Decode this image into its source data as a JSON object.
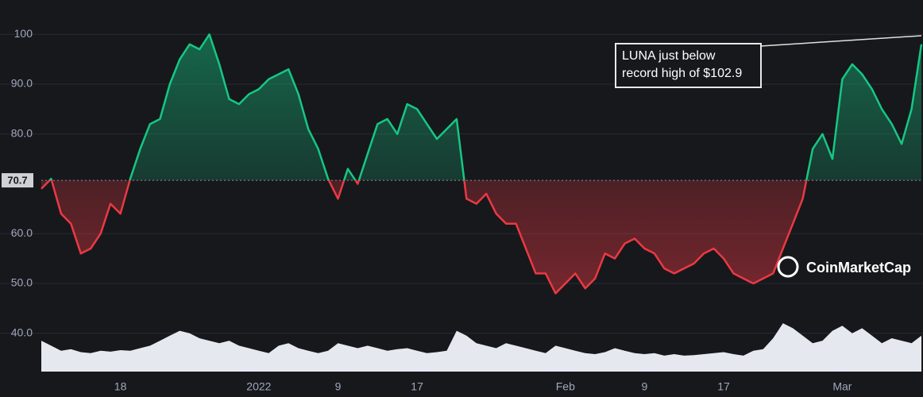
{
  "chart_data": {
    "type": "line",
    "categories": [
      null,
      null,
      null,
      null,
      null,
      null,
      null,
      null,
      "18",
      null,
      null,
      null,
      null,
      null,
      null,
      null,
      null,
      null,
      null,
      null,
      null,
      null,
      "2022",
      null,
      null,
      null,
      null,
      null,
      null,
      null,
      "9",
      null,
      null,
      null,
      null,
      null,
      null,
      null,
      "17",
      null,
      null,
      null,
      null,
      null,
      null,
      null,
      null,
      null,
      null,
      null,
      null,
      null,
      null,
      "Feb",
      null,
      null,
      null,
      null,
      null,
      null,
      null,
      "9",
      null,
      null,
      null,
      null,
      null,
      null,
      null,
      "17",
      null,
      null,
      null,
      null,
      null,
      null,
      null,
      null,
      null,
      null,
      null,
      "Mar",
      null,
      null,
      null,
      null,
      null,
      null,
      null,
      null
    ],
    "series": [
      {
        "color": "#16c784",
        "color_below": "#ea3943",
        "values": [
          69,
          71,
          64,
          62,
          56,
          57,
          60,
          66,
          64,
          71,
          77,
          82,
          83,
          90,
          95,
          98,
          97,
          100,
          94,
          87,
          86,
          88,
          89,
          91,
          92,
          93,
          88,
          81,
          77,
          71,
          67,
          73,
          70,
          76,
          82,
          83,
          80,
          86,
          85,
          82,
          79,
          81,
          83,
          67,
          66,
          68,
          64,
          62,
          62,
          57,
          52,
          52,
          48,
          50,
          52,
          49,
          51,
          56,
          55,
          58,
          59,
          57,
          56,
          53,
          52,
          53,
          54,
          56,
          57,
          55,
          52,
          51,
          50,
          51,
          52,
          57,
          62,
          67,
          77,
          80,
          75,
          91,
          94,
          92,
          89,
          85,
          82,
          78,
          85,
          98
        ]
      },
      {
        "color": "#e6e8f0",
        "values": [
          38.5,
          37.5,
          36.5,
          36.8,
          36.2,
          36.0,
          36.5,
          36.3,
          36.6,
          36.5,
          37.0,
          37.5,
          38.5,
          39.5,
          40.5,
          40.0,
          39.0,
          38.5,
          38.0,
          38.5,
          37.5,
          37.0,
          36.5,
          36.0,
          37.5,
          38.0,
          37.0,
          36.5,
          36.0,
          36.5,
          38.0,
          37.5,
          37.0,
          37.5,
          37.0,
          36.5,
          36.8,
          37.0,
          36.5,
          36.0,
          36.2,
          36.5,
          40.5,
          39.5,
          38.0,
          37.5,
          37.0,
          38.0,
          37.5,
          37.0,
          36.5,
          36.0,
          37.5,
          37.0,
          36.5,
          36.0,
          35.8,
          36.2,
          37.0,
          36.5,
          36.0,
          35.8,
          36.0,
          35.5,
          35.8,
          35.5,
          35.6,
          35.8,
          36.0,
          36.2,
          35.8,
          35.5,
          36.5,
          36.8,
          39.0,
          42.0,
          41.0,
          39.5,
          38.0,
          38.5,
          40.5,
          41.5,
          40.0,
          41.0,
          39.5,
          38.0,
          39.0,
          38.5,
          38.0,
          39.5
        ]
      }
    ],
    "baseline": 70.7,
    "ylim": [
      32.3,
      106.9
    ],
    "yticks": [
      {
        "value": 40,
        "label": "40.0"
      },
      {
        "value": 50,
        "label": "50.0"
      },
      {
        "value": 60,
        "label": "60.0"
      },
      {
        "value": 80,
        "label": "80.0"
      },
      {
        "value": 90,
        "label": "90.0"
      },
      100
    ],
    "grid": true,
    "annotation": [
      "LUNA just below",
      "record high of $102.9"
    ],
    "watermark": "CoinMarketCap"
  }
}
